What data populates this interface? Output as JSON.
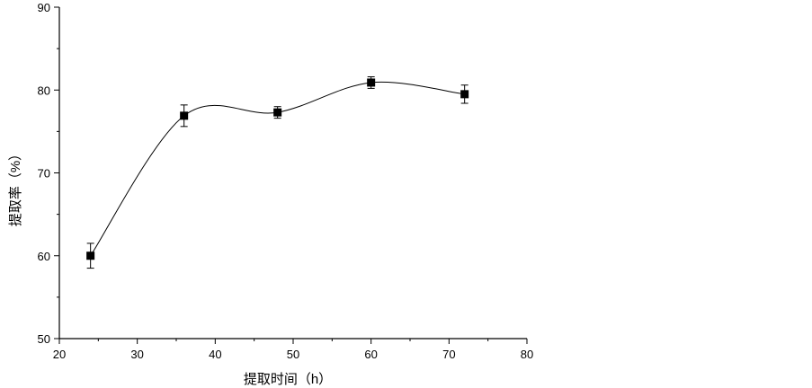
{
  "chart_data": {
    "type": "scatter",
    "xlabel": "提取时间（h）",
    "ylabel": "提取率（%）",
    "xlim": [
      20,
      80
    ],
    "ylim": [
      50,
      90
    ],
    "xticks": [
      20,
      30,
      40,
      50,
      60,
      70,
      80
    ],
    "yticks": [
      50,
      60,
      70,
      80,
      90
    ],
    "grid": false,
    "series": [
      {
        "x": [
          24,
          36,
          48,
          60,
          72
        ],
        "y": [
          60.0,
          76.9,
          77.3,
          80.9,
          79.5
        ],
        "error": [
          1.5,
          1.3,
          0.7,
          0.7,
          1.1
        ],
        "marker": "square",
        "color": "#000000",
        "smooth_line": true
      }
    ]
  }
}
